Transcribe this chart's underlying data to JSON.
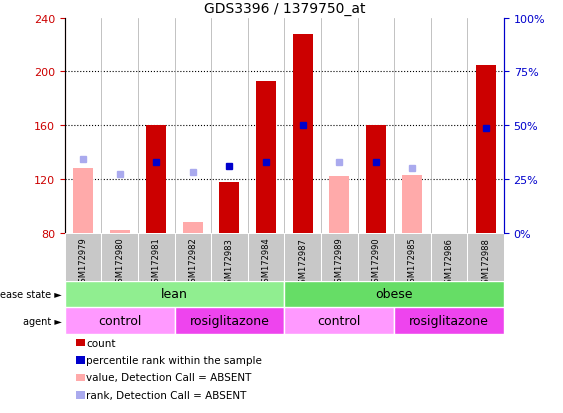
{
  "title": "GDS3396 / 1379750_at",
  "samples": [
    "GSM172979",
    "GSM172980",
    "GSM172981",
    "GSM172982",
    "GSM172983",
    "GSM172984",
    "GSM172987",
    "GSM172989",
    "GSM172990",
    "GSM172985",
    "GSM172986",
    "GSM172988"
  ],
  "count_values": [
    null,
    null,
    160,
    null,
    118,
    193,
    228,
    null,
    160,
    null,
    null,
    205
  ],
  "count_absent_values": [
    128,
    82,
    null,
    88,
    null,
    null,
    null,
    122,
    null,
    123,
    null,
    null
  ],
  "percentile_values": [
    null,
    null,
    133,
    null,
    130,
    133,
    160,
    null,
    133,
    null,
    null,
    158
  ],
  "percentile_absent_values": [
    135,
    124,
    null,
    125,
    null,
    null,
    null,
    133,
    null,
    128,
    null,
    null
  ],
  "ylim_left": [
    80,
    240
  ],
  "yticks_left": [
    80,
    120,
    160,
    200,
    240
  ],
  "disease_state": [
    {
      "label": "lean",
      "start": 0,
      "end": 6,
      "color": "#90ee90"
    },
    {
      "label": "obese",
      "start": 6,
      "end": 12,
      "color": "#66dd66"
    }
  ],
  "agent": [
    {
      "label": "control",
      "start": 0,
      "end": 3,
      "color": "#ff99ff"
    },
    {
      "label": "rosiglitazone",
      "start": 3,
      "end": 6,
      "color": "#ee44ee"
    },
    {
      "label": "control",
      "start": 6,
      "end": 9,
      "color": "#ff99ff"
    },
    {
      "label": "rosiglitazone",
      "start": 9,
      "end": 12,
      "color": "#ee44ee"
    }
  ],
  "colors": {
    "count": "#cc0000",
    "percentile": "#0000cc",
    "count_absent": "#ffaaaa",
    "percentile_absent": "#aaaaee",
    "x_area_bg": "#c8c8c8"
  },
  "legend_items": [
    {
      "label": "count",
      "color": "#cc0000"
    },
    {
      "label": "percentile rank within the sample",
      "color": "#0000cc"
    },
    {
      "label": "value, Detection Call = ABSENT",
      "color": "#ffaaaa"
    },
    {
      "label": "rank, Detection Call = ABSENT",
      "color": "#aaaaee"
    }
  ]
}
